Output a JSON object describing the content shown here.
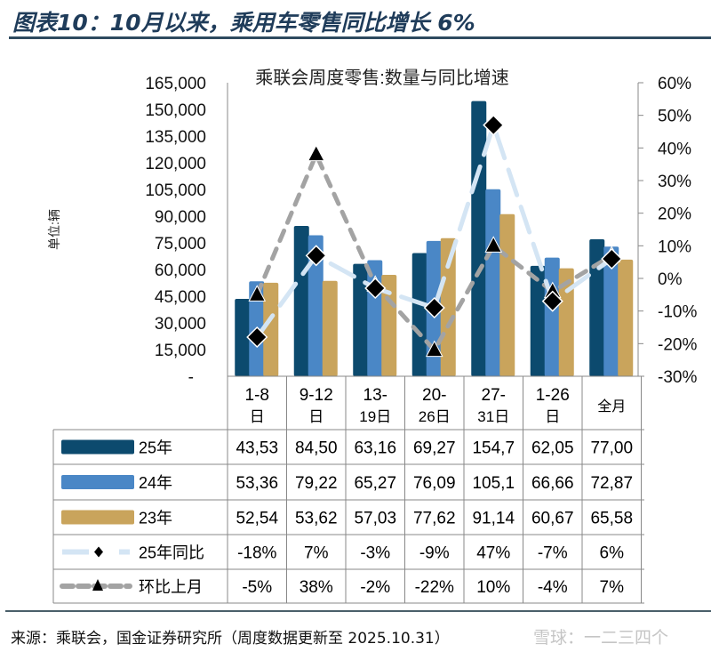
{
  "header": {
    "title": "图表10：10月以来，乘用车零售同比增长 6%"
  },
  "footer": {
    "source": "来源：乘联会，国金证券研究所（周度数据更新至 2025.10.31）",
    "watermark": "雪球：一二三四个"
  },
  "colors": {
    "y25": "#0c4a6e",
    "y24": "#4a87c6",
    "y23": "#c9a45c",
    "yoy": "#d4e5f4",
    "mom": "#a3a3a3",
    "title": "#1f3c5a"
  },
  "chart_data": {
    "type": "bar",
    "title": "乘联会周度零售:数量与同比增速",
    "ylabel": "单位:辆",
    "ylim": [
      0,
      165000
    ],
    "y2lim": [
      -30,
      60
    ],
    "yticks": [
      "-",
      "15,000",
      "30,000",
      "45,000",
      "60,000",
      "75,000",
      "90,000",
      "105,000",
      "120,000",
      "135,000",
      "150,000",
      "165,000"
    ],
    "y2ticks": [
      "-30%",
      "-20%",
      "-10%",
      "0%",
      "10%",
      "20%",
      "30%",
      "40%",
      "50%",
      "60%"
    ],
    "categories": [
      [
        "1-8",
        "日"
      ],
      [
        "9-12",
        "日"
      ],
      [
        "13-",
        "19日"
      ],
      [
        "20-",
        "26日"
      ],
      [
        "27-",
        "31日"
      ],
      [
        "1-26",
        "日"
      ],
      [
        "全月",
        ""
      ]
    ],
    "series": [
      {
        "name": "25年",
        "kind": "bar",
        "values": [
          43530,
          84500,
          63160,
          69270,
          154700,
          62050,
          77000
        ],
        "labels": [
          "43,53",
          "84,50",
          "63,16",
          "69,27",
          "154,7",
          "62,05",
          "77,00"
        ]
      },
      {
        "name": "24年",
        "kind": "bar",
        "values": [
          53360,
          79220,
          65270,
          76090,
          105100,
          66660,
          72870
        ],
        "labels": [
          "53,36",
          "79,22",
          "65,27",
          "76,09",
          "105,1",
          "66,66",
          "72,87"
        ]
      },
      {
        "name": "23年",
        "kind": "bar",
        "values": [
          52540,
          53620,
          57030,
          77620,
          91140,
          60670,
          65580
        ],
        "labels": [
          "52,54",
          "53,62",
          "57,03",
          "77,62",
          "91,14",
          "60,67",
          "65,58"
        ]
      },
      {
        "name": "25年同比",
        "kind": "line",
        "axis": "right",
        "marker": "diamond",
        "values": [
          -18,
          7,
          -3,
          -9,
          47,
          -7,
          6
        ],
        "labels": [
          "-18%",
          "7%",
          "-3%",
          "-9%",
          "47%",
          "-7%",
          "6%"
        ]
      },
      {
        "name": "环比上月",
        "kind": "line",
        "axis": "right",
        "marker": "triangle",
        "values": [
          -5,
          38,
          -2,
          -22,
          10,
          -4,
          7
        ],
        "labels": [
          "-5%",
          "38%",
          "-2%",
          "-22%",
          "10%",
          "-4%",
          "7%"
        ]
      }
    ],
    "grid": false,
    "legend": "table-below"
  }
}
